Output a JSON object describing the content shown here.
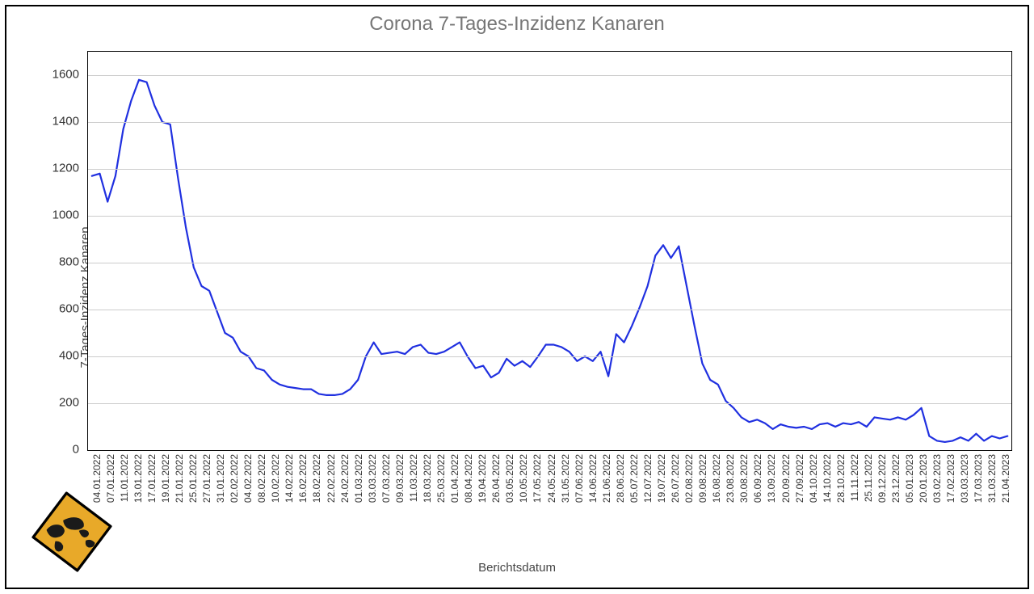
{
  "chart": {
    "type": "line",
    "title": "Corona 7-Tages-Inzidenz Kanaren",
    "title_color": "#777777",
    "title_fontsize": 24,
    "ylabel": "7-Tages-Inzidenz Kanaren",
    "xlabel": "Berichtsdatum",
    "axis_label_color": "#444444",
    "axis_label_fontsize": 15,
    "background_color": "#ffffff",
    "frame_border_color": "#000000",
    "plot_border_color": "#000000",
    "grid_color": "#cccccc",
    "tick_color": "#333333",
    "ytick_fontsize": 15,
    "xtick_fontsize": 12,
    "line_color": "#2030e0",
    "line_width": 2.2,
    "ylim": [
      0,
      1700
    ],
    "yticks": [
      0,
      200,
      400,
      600,
      800,
      1000,
      1200,
      1400,
      1600
    ],
    "x_labels": [
      "04.01.2022",
      "07.01.2022",
      "11.01.2022",
      "13.01.2022",
      "17.01.2022",
      "19.01.2022",
      "21.01.2022",
      "25.01.2022",
      "27.01.2022",
      "31.01.2022",
      "02.02.2022",
      "04.02.2022",
      "08.02.2022",
      "10.02.2022",
      "14.02.2022",
      "16.02.2022",
      "18.02.2022",
      "22.02.2022",
      "24.02.2022",
      "01.03.2022",
      "03.03.2022",
      "07.03.2022",
      "09.03.2022",
      "11.03.2022",
      "18.03.2022",
      "25.03.2022",
      "01.04.2022",
      "08.04.2022",
      "19.04.2022",
      "26.04.2022",
      "03.05.2022",
      "10.05.2022",
      "17.05.2022",
      "24.05.2022",
      "31.05.2022",
      "07.06.2022",
      "14.06.2022",
      "21.06.2022",
      "28.06.2022",
      "05.07.2022",
      "12.07.2022",
      "19.07.2022",
      "26.07.2022",
      "02.08.2022",
      "09.08.2022",
      "16.08.2022",
      "23.08.2022",
      "30.08.2022",
      "06.09.2022",
      "13.09.2022",
      "20.09.2022",
      "27.09.2022",
      "04.10.2022",
      "14.10.2022",
      "28.10.2022",
      "11.11.2022",
      "25.11.2022",
      "09.12.2022",
      "23.12.2022",
      "05.01.2023",
      "20.01.2023",
      "03.02.2023",
      "17.02.2023",
      "03.03.2023",
      "17.03.2023",
      "31.03.2023",
      "21.04.2023"
    ],
    "series": [
      1170,
      1180,
      1060,
      1170,
      1370,
      1490,
      1580,
      1570,
      1470,
      1400,
      1390,
      1160,
      950,
      780,
      700,
      680,
      590,
      500,
      480,
      420,
      400,
      350,
      340,
      300,
      280,
      270,
      265,
      260,
      260,
      240,
      235,
      235,
      240,
      260,
      300,
      400,
      460,
      410,
      415,
      420,
      410,
      440,
      450,
      415,
      410,
      420,
      440,
      460,
      400,
      350,
      360,
      310,
      330,
      390,
      360,
      380,
      355,
      400,
      450,
      450,
      440,
      420,
      380,
      400,
      380,
      420,
      315,
      495,
      460,
      530,
      610,
      700,
      830,
      875,
      820,
      870,
      700,
      530,
      370,
      300,
      280,
      210,
      180,
      140,
      120,
      130,
      115,
      90,
      110,
      100,
      95,
      100,
      90,
      110,
      115,
      100,
      115,
      110,
      120,
      100,
      140,
      135,
      130,
      140,
      130,
      150,
      180,
      60,
      40,
      35,
      40,
      55,
      40,
      70,
      40,
      60,
      50,
      60
    ]
  },
  "logo": {
    "sign_fill": "#e8a929",
    "sign_stroke": "#000000",
    "map_fill": "#1a1a1a"
  }
}
